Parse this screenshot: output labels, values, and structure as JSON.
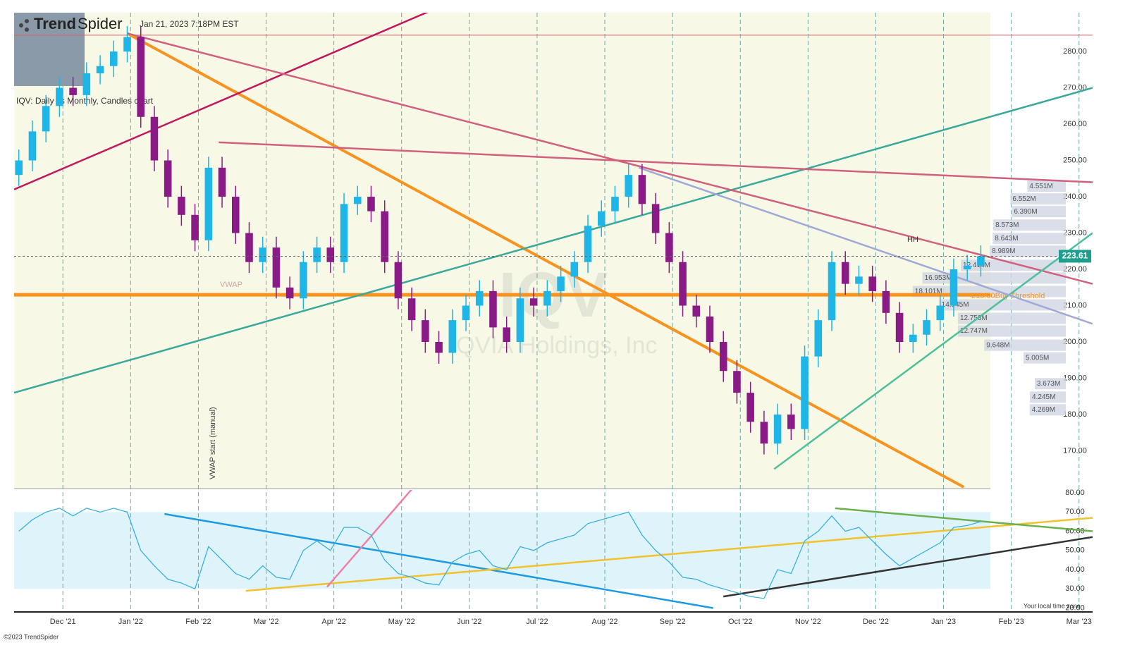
{
  "header": {
    "logo_bold": "Trend",
    "logo_light": "Spider",
    "timestamp": "Jan 21, 2023 7:18PM EST",
    "subtitle": "IQV: Daily vs Monthly, Candles chart",
    "footer": "©2023 TrendSpider",
    "timezone_note": "Your local time zone"
  },
  "chart_data": {
    "type": "candlestick",
    "watermark": "IQV",
    "watermark_name": "IQVIA Holdings, Inc",
    "up_color": "#1fb5e6",
    "down_color": "#8a1a86",
    "xlim": [
      -0.72,
      15.2
    ],
    "xticks": [
      {
        "value": 0,
        "label": "Dec '21"
      },
      {
        "value": 1,
        "label": "Jan '22"
      },
      {
        "value": 2,
        "label": "Feb '22"
      },
      {
        "value": 3,
        "label": "Mar '22"
      },
      {
        "value": 4,
        "label": "Apr '22"
      },
      {
        "value": 5,
        "label": "May '22"
      },
      {
        "value": 6,
        "label": "Jun '22"
      },
      {
        "value": 7,
        "label": "Jul '22"
      },
      {
        "value": 8,
        "label": "Aug '22"
      },
      {
        "value": 9,
        "label": "Sep '22"
      },
      {
        "value": 10,
        "label": "Oct '22"
      },
      {
        "value": 11,
        "label": "Nov '22"
      },
      {
        "value": 12,
        "label": "Dec '22"
      },
      {
        "value": 13,
        "label": "Jan '23"
      },
      {
        "value": 14,
        "label": "Feb '23"
      },
      {
        "value": 15,
        "label": "Mar '23"
      }
    ],
    "ylim": [
      159.8,
      290.7
    ],
    "yticks": [
      {
        "value": 170,
        "label": "170.00"
      },
      {
        "value": 180,
        "label": "180.00"
      },
      {
        "value": 190,
        "label": "190.00"
      },
      {
        "value": 200,
        "label": "200.00"
      },
      {
        "value": 210,
        "label": "210.00"
      },
      {
        "value": 220,
        "label": "220.00"
      },
      {
        "value": 230,
        "label": "230.00"
      },
      {
        "value": 240,
        "label": "240.00"
      },
      {
        "value": 250,
        "label": "250.00"
      },
      {
        "value": 260,
        "label": "260.00"
      },
      {
        "value": 270,
        "label": "270.00"
      },
      {
        "value": 280,
        "label": "280.00"
      }
    ],
    "ohlc": {
      "x": [
        -0.65,
        -0.45,
        -0.25,
        -0.05,
        0.15,
        0.35,
        0.55,
        0.75,
        0.95,
        1.15,
        1.35,
        1.55,
        1.75,
        1.95,
        2.15,
        2.35,
        2.55,
        2.75,
        2.95,
        3.15,
        3.35,
        3.55,
        3.75,
        3.95,
        4.15,
        4.35,
        4.55,
        4.75,
        4.95,
        5.15,
        5.35,
        5.55,
        5.75,
        5.95,
        6.15,
        6.35,
        6.55,
        6.75,
        6.95,
        7.15,
        7.35,
        7.55,
        7.75,
        7.95,
        8.15,
        8.35,
        8.55,
        8.75,
        8.95,
        9.15,
        9.35,
        9.55,
        9.75,
        9.95,
        10.15,
        10.35,
        10.55,
        10.75,
        10.95,
        11.15,
        11.35,
        11.55,
        11.75,
        11.95,
        12.15,
        12.35,
        12.55,
        12.75,
        12.95,
        13.15,
        13.35,
        13.55
      ],
      "open": [
        246,
        250,
        258,
        265,
        270,
        268,
        274,
        276,
        280,
        284,
        262,
        250,
        240,
        235,
        228,
        248,
        240,
        230,
        222,
        226,
        215,
        212,
        222,
        226,
        222,
        238,
        240,
        236,
        222,
        212,
        206,
        200,
        197,
        206,
        210,
        214,
        204,
        200,
        212,
        210,
        214,
        218,
        222,
        232,
        236,
        240,
        246,
        238,
        230,
        222,
        210,
        207,
        200,
        192,
        186,
        178,
        172,
        180,
        176,
        196,
        206,
        222,
        216,
        218,
        214,
        208,
        200,
        202,
        206,
        210,
        220,
        221
      ],
      "high": [
        253,
        261,
        268,
        273,
        273,
        277,
        279,
        283,
        287,
        287,
        265,
        253,
        243,
        238,
        251,
        251,
        243,
        233,
        229,
        229,
        218,
        225,
        229,
        229,
        241,
        243,
        243,
        239,
        225,
        215,
        209,
        203,
        209,
        213,
        217,
        217,
        207,
        215,
        215,
        217,
        221,
        225,
        235,
        239,
        243,
        249,
        249,
        241,
        233,
        225,
        213,
        210,
        203,
        195,
        189,
        181,
        183,
        183,
        199,
        209,
        225,
        225,
        221,
        221,
        217,
        211,
        205,
        209,
        213,
        223,
        224,
        226.6
      ],
      "low": [
        243,
        247,
        255,
        262,
        265,
        265,
        271,
        273,
        277,
        259,
        247,
        237,
        232,
        225,
        225,
        237,
        227,
        219,
        219,
        212,
        209,
        209,
        219,
        219,
        219,
        235,
        233,
        219,
        209,
        203,
        197,
        194,
        194,
        203,
        207,
        201,
        197,
        197,
        207,
        207,
        211,
        215,
        219,
        229,
        233,
        237,
        235,
        227,
        219,
        207,
        204,
        197,
        189,
        183,
        175,
        169,
        169,
        173,
        173,
        193,
        203,
        213,
        213,
        211,
        205,
        197,
        197,
        199,
        203,
        207,
        217,
        218
      ],
      "close": [
        250,
        258,
        265,
        270,
        268,
        274,
        276,
        280,
        284,
        262,
        250,
        240,
        235,
        228,
        248,
        240,
        230,
        222,
        226,
        215,
        212,
        222,
        226,
        222,
        238,
        240,
        236,
        222,
        212,
        206,
        200,
        197,
        206,
        210,
        214,
        204,
        200,
        212,
        210,
        214,
        218,
        222,
        232,
        236,
        240,
        246,
        238,
        230,
        222,
        210,
        207,
        200,
        192,
        186,
        178,
        172,
        180,
        176,
        196,
        206,
        222,
        216,
        218,
        214,
        208,
        200,
        202,
        206,
        210,
        220,
        221,
        223.61
      ]
    },
    "price_badge_color": "#1f9d8f",
    "buy_threshold": 213,
    "buy_threshold_label": "213.00Buy Threshold",
    "buy_threshold_color": "#f7931e",
    "resistance": 284.5,
    "vwap_label": "VWAP",
    "vwap_start_label": "VWAP start (manual)",
    "hh_label": "HH",
    "trendlines": [
      {
        "color": "#f7931e",
        "points": [
          [
            0.95,
            285
          ],
          [
            13.3,
            160
          ]
        ]
      },
      {
        "color": "#c2185b",
        "points": [
          [
            -0.72,
            242
          ],
          [
            5.4,
            291
          ]
        ]
      },
      {
        "color": "#3aa89a",
        "points": [
          [
            -0.72,
            186
          ],
          [
            15.2,
            270
          ]
        ]
      },
      {
        "color": "#d0607e",
        "points": [
          [
            0.95,
            285
          ],
          [
            15.2,
            216
          ]
        ]
      },
      {
        "color": "#d0607e",
        "points": [
          [
            2.3,
            255
          ],
          [
            15.2,
            244
          ]
        ]
      },
      {
        "color": "#4dbf9a",
        "points": [
          [
            10.5,
            165
          ],
          [
            15.2,
            230
          ]
        ]
      },
      {
        "color": "#a0a8d8",
        "points": [
          [
            8.5,
            248
          ],
          [
            15.2,
            205
          ]
        ]
      }
    ],
    "volume_profile": {
      "color": "#cfd6e3",
      "prices": [
        242.9,
        239.4,
        235.9,
        232.2,
        228.5,
        225,
        221.1,
        217.6,
        213.9,
        210.2,
        206.5,
        203,
        199.1,
        195.6,
        188.5,
        184.8,
        181.3
      ],
      "values": [
        4.551,
        6.552,
        6.39,
        8.573,
        8.643,
        8.989,
        12.414,
        16.953,
        18.101,
        14.945,
        12.753,
        12.747,
        9.648,
        5.005,
        3.673,
        4.245,
        4.269
      ],
      "value_labels": [
        "4.551M",
        "6.552M",
        "6.390M",
        "8.573M",
        "8.643M",
        "8.989M",
        "12.414M",
        "16.953M",
        "18.101M",
        "14.945M",
        "12.753M",
        "12.747M",
        "9.648M",
        "5.005M",
        "3.673M",
        "4.245M",
        "4.269M"
      ]
    },
    "rsi": {
      "color": "#3ab0e0",
      "band": [
        30,
        70
      ],
      "band_color": "#dff4fa",
      "ylim": [
        18.7,
        81.5
      ],
      "yticks": [
        {
          "value": 20,
          "label": "20.00"
        },
        {
          "value": 30,
          "label": "30.00"
        },
        {
          "value": 40,
          "label": "40.00"
        },
        {
          "value": 50,
          "label": "50.00"
        },
        {
          "value": 60,
          "label": "60.00"
        },
        {
          "value": 70,
          "label": "70.00"
        },
        {
          "value": 80,
          "label": "80.00"
        }
      ],
      "values": [
        60,
        66,
        70,
        72,
        68,
        72,
        70,
        72,
        70,
        50,
        42,
        35,
        33,
        30,
        52,
        45,
        38,
        35,
        42,
        36,
        35,
        50,
        55,
        50,
        62,
        62,
        58,
        45,
        38,
        36,
        33,
        32,
        44,
        48,
        50,
        42,
        40,
        52,
        50,
        54,
        56,
        58,
        64,
        66,
        68,
        70,
        58,
        50,
        44,
        36,
        35,
        32,
        30,
        28,
        26,
        25,
        40,
        38,
        55,
        60,
        68,
        60,
        62,
        55,
        48,
        42,
        46,
        50,
        54,
        62,
        63,
        65
      ],
      "trendlines": [
        {
          "color": "#1e9be0",
          "points": [
            [
              1.5,
              69
            ],
            [
              9.6,
              20
            ]
          ]
        },
        {
          "color": "#f2c12e",
          "points": [
            [
              2.7,
              29
            ],
            [
              15.2,
              67
            ]
          ]
        },
        {
          "color": "#ee7fa6",
          "points": [
            [
              3.9,
              31
            ],
            [
              5.3,
              88
            ]
          ]
        },
        {
          "color": "#333333",
          "points": [
            [
              9.75,
              26
            ],
            [
              15.2,
              57
            ]
          ]
        },
        {
          "color": "#6ab04c",
          "points": [
            [
              11.4,
              72
            ],
            [
              15.2,
              60
            ]
          ]
        }
      ]
    }
  }
}
